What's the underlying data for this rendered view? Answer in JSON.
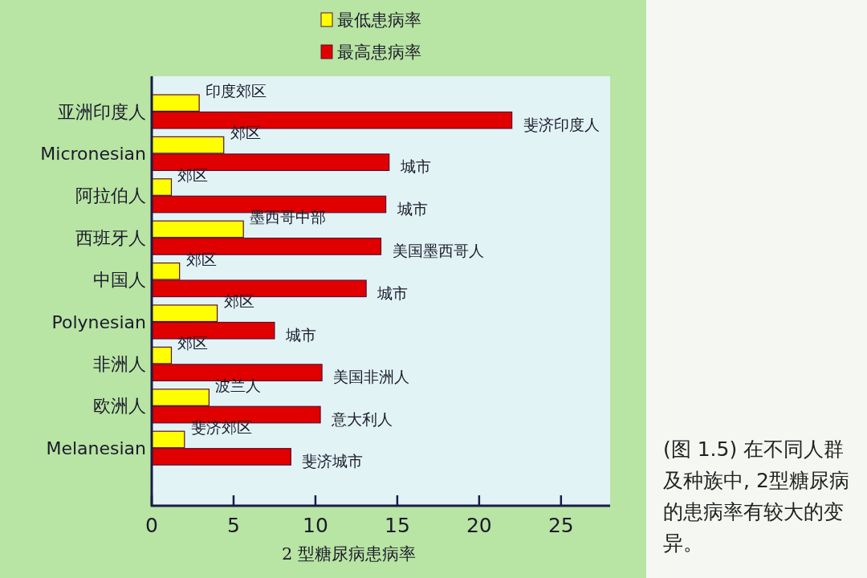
{
  "chart_data": {
    "type": "bar",
    "orientation": "horizontal",
    "legend": "top",
    "grid": false,
    "categories": [
      "亚洲印度人",
      "Micronesian",
      "阿拉伯人",
      "西班牙人",
      "中国人",
      "Polynesian",
      "非洲人",
      "欧洲人",
      "Melanesian"
    ],
    "series": [
      {
        "name": "最低患病率",
        "color": "#ffff00",
        "values": [
          2.9,
          4.4,
          1.2,
          5.6,
          1.7,
          4.0,
          1.2,
          3.5,
          2.0
        ]
      },
      {
        "name": "最高患病率",
        "color": "#e00000",
        "values": [
          22.0,
          14.5,
          14.3,
          14.0,
          13.1,
          7.5,
          10.4,
          10.3,
          8.5
        ]
      }
    ],
    "xlabel": "2 型糖尿病患病率",
    "xlim": [
      0,
      28
    ],
    "xticks": [
      0,
      5,
      10,
      15,
      20,
      25
    ],
    "annotations": [
      {
        "text": "印度郊区",
        "x": 2.9,
        "y": "亚洲印度人"
      },
      {
        "text": "斐济印度人",
        "x": 22.0,
        "y": "亚洲印度人"
      },
      {
        "text": "郊区",
        "x": 4.4,
        "y": "Micronesian"
      },
      {
        "text": "城市",
        "x": 14.5,
        "y": "Micronesian"
      },
      {
        "text": "郊区",
        "x": 1.2,
        "y": "阿拉伯人"
      },
      {
        "text": "城市",
        "x": 14.3,
        "y": "阿拉伯人"
      },
      {
        "text": "墨西哥中部",
        "x": 5.6,
        "y": "西班牙人"
      },
      {
        "text": "美国墨西哥人",
        "x": 14.0,
        "y": "西班牙人"
      },
      {
        "text": "郊区",
        "x": 1.7,
        "y": "中国人"
      },
      {
        "text": "城市",
        "x": 13.1,
        "y": "中国人"
      },
      {
        "text": "郊区",
        "x": 4.0,
        "y": "Polynesian"
      },
      {
        "text": "城市",
        "x": 7.5,
        "y": "Polynesian"
      },
      {
        "text": "郊区",
        "x": 1.2,
        "y": "非洲人"
      },
      {
        "text": "美国非洲人",
        "x": 10.4,
        "y": "非洲人"
      },
      {
        "text": "波兰人",
        "x": 3.5,
        "y": "欧洲人"
      },
      {
        "text": "意大利人",
        "x": 10.3,
        "y": "欧洲人"
      },
      {
        "text": "斐济郊区",
        "x": 2.0,
        "y": "Melanesian"
      },
      {
        "text": "斐济城市",
        "x": 8.5,
        "y": "Melanesian"
      },
      "(图 1.5) 在不同人群及种族中, 2型糖尿病的患病率有较大的变异。"
    ]
  }
}
